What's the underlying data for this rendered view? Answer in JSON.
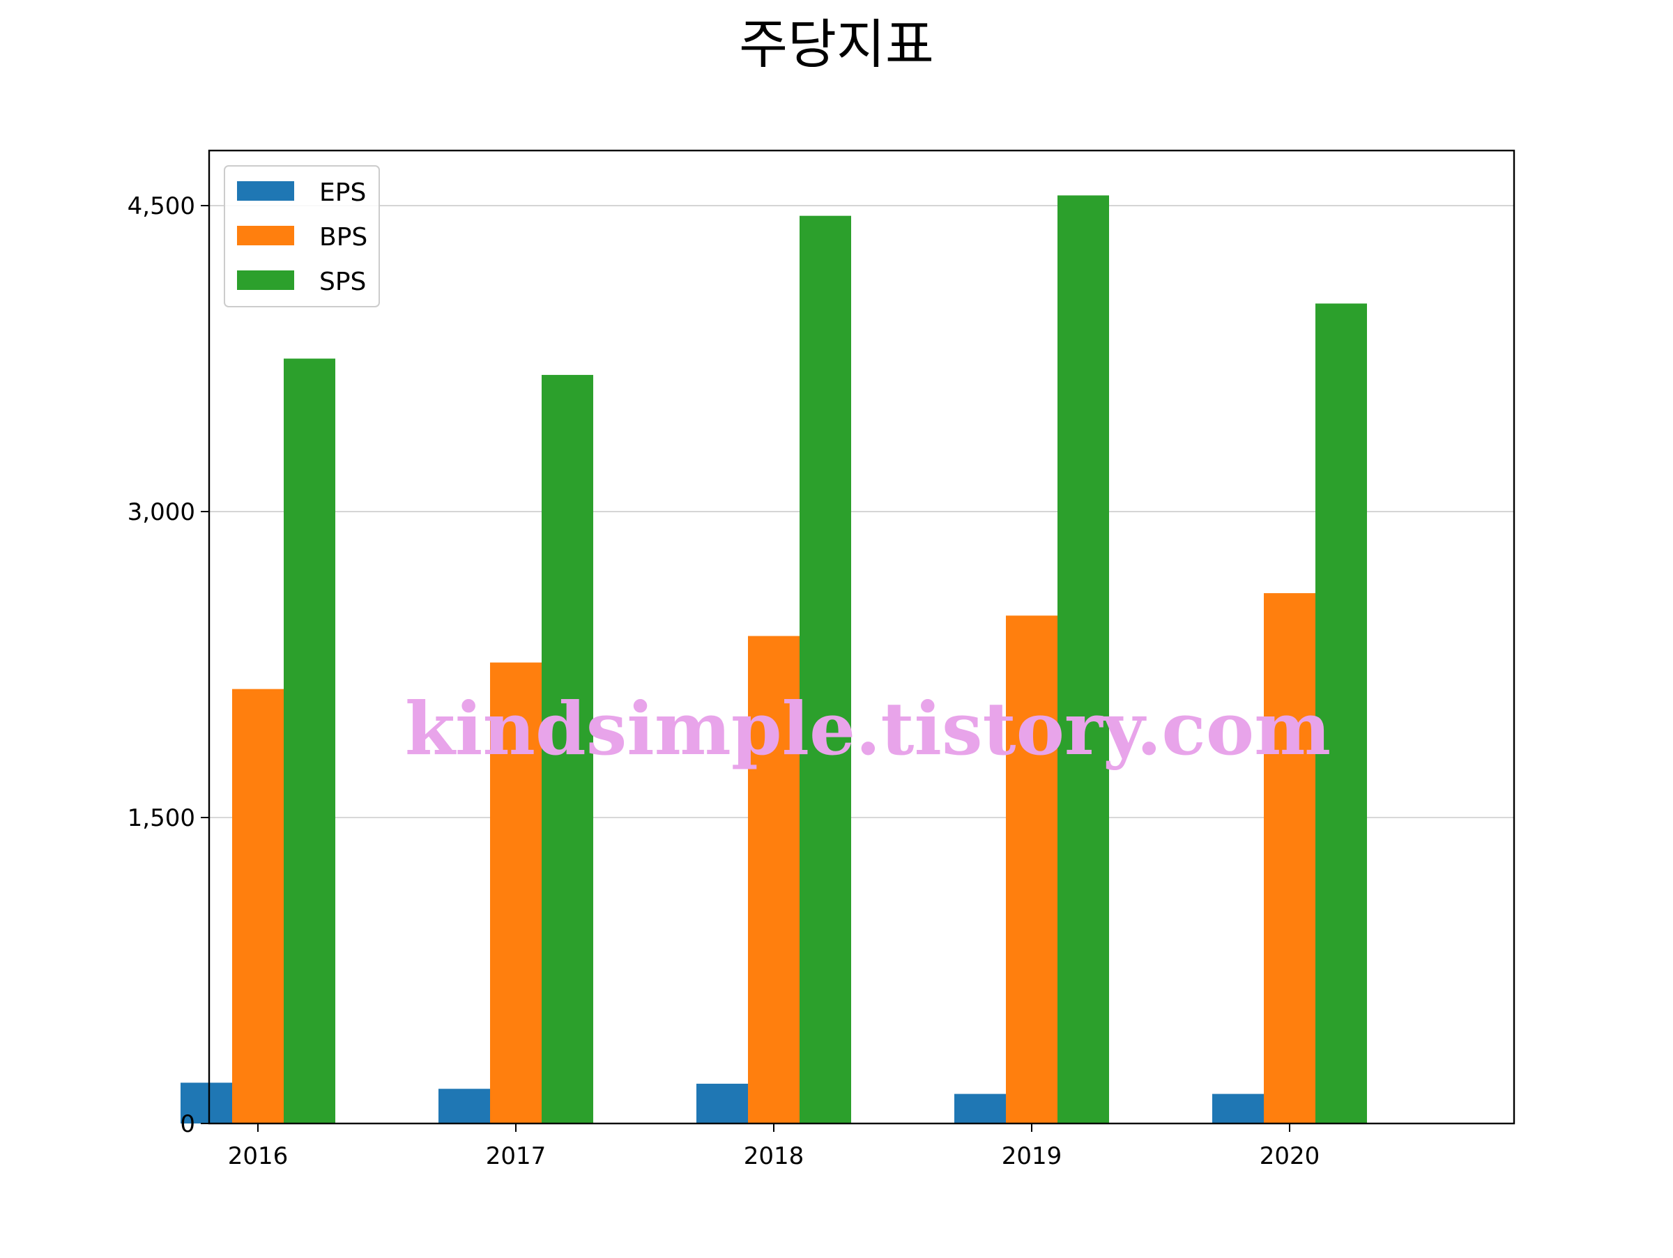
{
  "chart_data": {
    "type": "bar",
    "title": "주당지표",
    "xlabel": "",
    "ylabel": "",
    "categories": [
      "2016",
      "2017",
      "2018",
      "2019",
      "2020"
    ],
    "series": [
      {
        "name": "EPS",
        "values": [
          200,
          170,
          195,
          145,
          145
        ],
        "color": "#1f77b4"
      },
      {
        "name": "BPS",
        "values": [
          2130,
          2260,
          2390,
          2490,
          2600
        ],
        "color": "#ff7f0e"
      },
      {
        "name": "SPS",
        "values": [
          3750,
          3670,
          4450,
          4550,
          4020
        ],
        "color": "#2ca02c"
      }
    ],
    "ylim": [
      0,
      4770
    ],
    "yticks": [
      0,
      1500,
      3000,
      4500
    ],
    "ytick_labels": [
      "0",
      "1,500",
      "3,000",
      "4,500"
    ],
    "grid": "y",
    "legend_position": "upper-left"
  },
  "watermark": {
    "text": "kindsimple.tistory.com",
    "color": "#e8a4ea"
  }
}
